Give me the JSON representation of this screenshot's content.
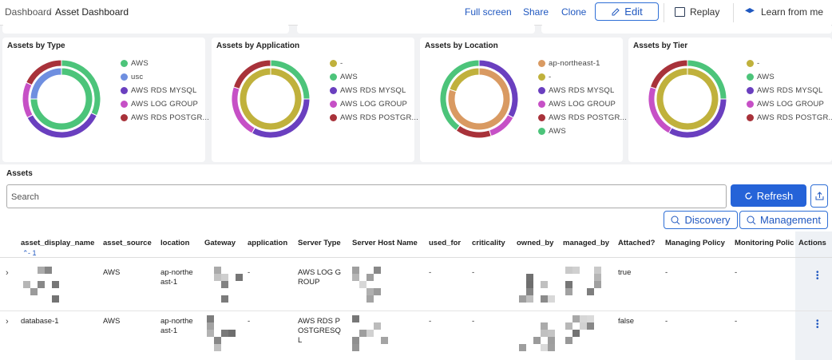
{
  "breadcrumb": [
    "Dashboard",
    "Asset Dashboard"
  ],
  "breadcrumb_separator": "/",
  "toolbar": [
    "Full screen",
    "Share",
    "Clone",
    "Edit",
    "Replay",
    "Learn from me"
  ],
  "panels": [
    {
      "title": "Assets by Type",
      "legend": [
        {
          "name": "AWS",
          "color": "#4cc47a"
        },
        {
          "name": "usc",
          "color": "#6f8fe0"
        },
        {
          "name": "AWS RDS MYSQL",
          "color": "#6a3fbf"
        },
        {
          "name": "AWS LOG GROUP",
          "color": "#c650c6"
        },
        {
          "name": "AWS RDS POSTGR...",
          "color": "#a8323a"
        }
      ],
      "inner": [
        75,
        25,
        null,
        null,
        null
      ],
      "outer": [
        32,
        null,
        35,
        15,
        18
      ]
    },
    {
      "title": "Assets by Application",
      "legend": [
        {
          "name": "-",
          "color": "#c0b13c"
        },
        {
          "name": "AWS",
          "color": "#4cc47a"
        },
        {
          "name": "AWS RDS MYSQL",
          "color": "#6a3fbf"
        },
        {
          "name": "AWS LOG GROUP",
          "color": "#c650c6"
        },
        {
          "name": "AWS RDS POSTGR...",
          "color": "#a8323a"
        }
      ],
      "inner": [
        100,
        null,
        null,
        null,
        null
      ],
      "outer": [
        null,
        25,
        33,
        22,
        20
      ]
    },
    {
      "title": "Assets by Location",
      "legend": [
        {
          "name": "ap-northeast-1",
          "color": "#d99a62"
        },
        {
          "name": "-",
          "color": "#c0b13c"
        },
        {
          "name": "AWS RDS MYSQL",
          "color": "#6a3fbf"
        },
        {
          "name": "AWS LOG GROUP",
          "color": "#c650c6"
        },
        {
          "name": "AWS RDS POSTGR...",
          "color": "#a8323a"
        },
        {
          "name": "AWS",
          "color": "#4cc47a"
        }
      ],
      "inner": [
        80,
        20,
        null,
        null,
        null,
        null
      ],
      "outer": [
        null,
        null,
        33,
        12,
        15,
        40
      ]
    },
    {
      "title": "Assets by Tier",
      "legend": [
        {
          "name": "-",
          "color": "#c0b13c"
        },
        {
          "name": "AWS",
          "color": "#4cc47a"
        },
        {
          "name": "AWS RDS MYSQL",
          "color": "#6a3fbf"
        },
        {
          "name": "AWS LOG GROUP",
          "color": "#c650c6"
        },
        {
          "name": "AWS RDS POSTGR...",
          "color": "#a8323a"
        }
      ],
      "inner": [
        100,
        null,
        null,
        null,
        null
      ],
      "outer": [
        null,
        25,
        33,
        22,
        20
      ]
    }
  ],
  "assets": {
    "title": "Assets",
    "search_placeholder": "Search",
    "refresh": "Refresh",
    "discovery": "Discovery",
    "management": "Management",
    "sort_indicator": "- 1",
    "columns": [
      "asset_display_name",
      "asset_source",
      "location",
      "Gateway",
      "application",
      "Server Type",
      "Server Host Name",
      "used_for",
      "criticality",
      "owned_by",
      "managed_by",
      "Attached?",
      "Managing Policy",
      "Monitoring Polic",
      "Actions"
    ],
    "rows": [
      [
        null,
        "AWS",
        "ap-northeast-1",
        null,
        "-",
        "AWS LOG GROUP",
        null,
        "-",
        "-",
        null,
        null,
        "true",
        "-",
        "-"
      ],
      [
        "database-1",
        "AWS",
        "ap-northeast-1",
        null,
        "-",
        "AWS RDS POSTGRESQL",
        null,
        "-",
        "-",
        null,
        null,
        "false",
        "-",
        "-"
      ]
    ]
  }
}
